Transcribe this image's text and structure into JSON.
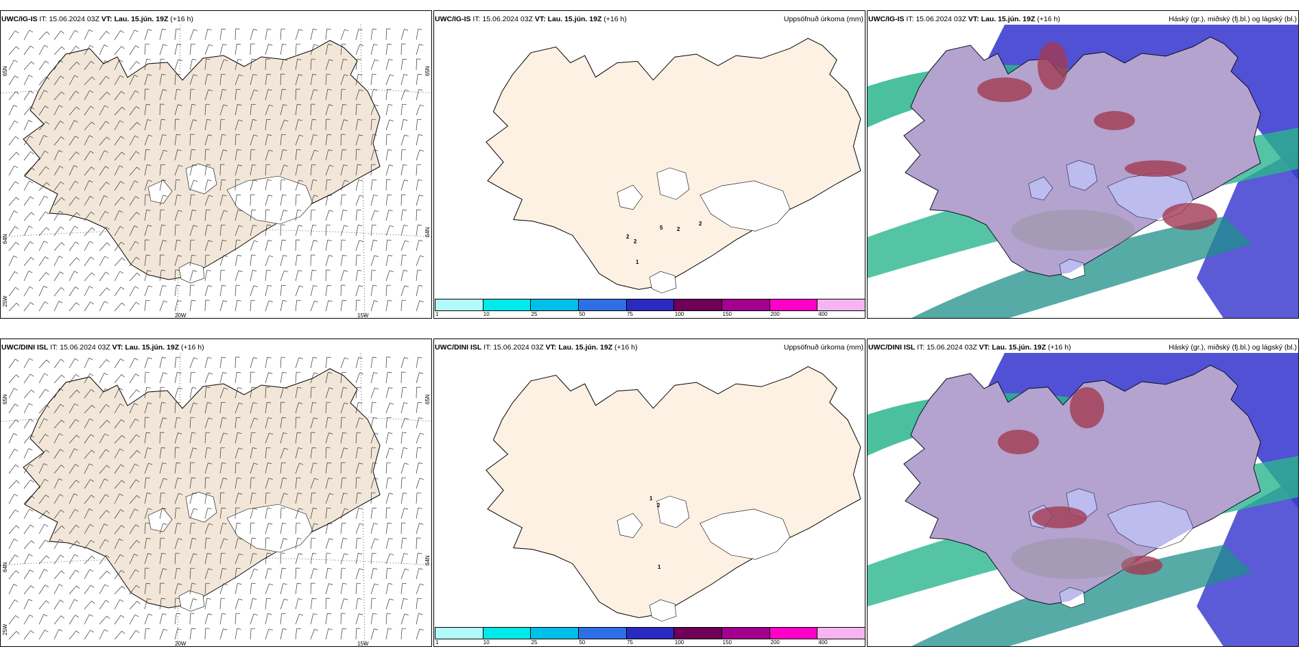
{
  "rows": [
    {
      "model": "UWC/IG-IS",
      "it_label": "IT:",
      "it_value": "15.06.2024 03Z",
      "vt_label": "VT:",
      "vt_value": "Lau. 15.jún. 19Z",
      "lead": "(+16 h)",
      "precip_labels": [
        "2",
        "2",
        "5",
        "2",
        "2",
        "1"
      ],
      "lat_labels": [
        "65N",
        "64N",
        "25W"
      ],
      "lon_labels": [
        "20W",
        "15W"
      ],
      "lat_labels_mid": [
        "65N",
        "64N"
      ]
    },
    {
      "model": "UWC/DINI ISL",
      "it_label": "IT:",
      "it_value": "15.06.2024 03Z",
      "vt_label": "VT:",
      "vt_value": "Lau. 15.jún. 19Z",
      "lead": "(+16 h)",
      "precip_labels": [
        "1",
        "2",
        "1"
      ],
      "lat_labels": [
        "65N",
        "64N",
        "25W"
      ],
      "lon_labels": [
        "20W",
        "15W"
      ],
      "lat_labels_mid": [
        "65N",
        "64N"
      ]
    }
  ],
  "precip_title": "Uppsöfnuð úrkoma (mm)",
  "cloud_title": "Háský (gr.), miðský (fj.bl.) og lágský (bl.)",
  "precip_legend": {
    "ticks": [
      "1",
      "10",
      "25",
      "50",
      "75",
      "100",
      "150",
      "200",
      "400"
    ],
    "colors": [
      "#b3fbfb",
      "#00eaea",
      "#00bfe8",
      "#2f6fe6",
      "#2a2ac0",
      "#6e0057",
      "#a2008d",
      "#ff00c8",
      "#f6b5f0"
    ]
  },
  "colors": {
    "land_wind": "#f2e6d8",
    "land_precip": "#fdf1e3",
    "cloud_high": "#8b8b8b",
    "cloud_mid_blue": "#3e3ed0",
    "cloud_low_green": "#2bb58d",
    "cloud_red": "#a33a52"
  }
}
